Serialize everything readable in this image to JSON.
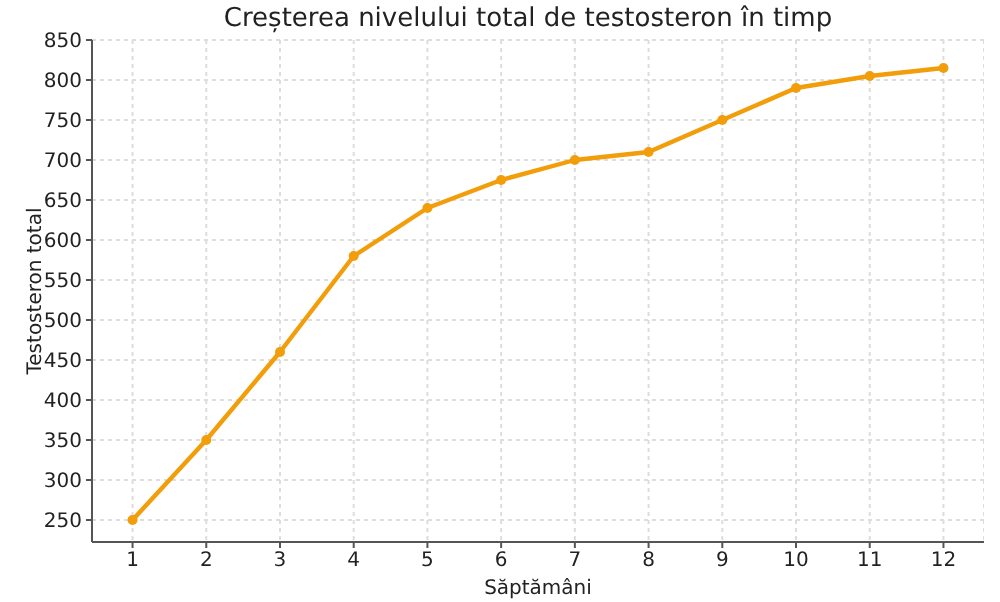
{
  "chart_data": {
    "type": "line",
    "title": "Creșterea nivelului total de testosteron în timp",
    "xlabel": "Săptămâni",
    "ylabel": "Testosteron total",
    "x": [
      1,
      2,
      3,
      4,
      5,
      6,
      7,
      8,
      9,
      10,
      11,
      12
    ],
    "series": [
      {
        "color": "#f29d0a",
        "values": [
          250,
          350,
          460,
          580,
          640,
          675,
          700,
          710,
          750,
          790,
          805,
          815
        ]
      }
    ],
    "xlim": [
      0.45,
      12.55
    ],
    "xticks": [
      1,
      2,
      3,
      4,
      5,
      6,
      7,
      8,
      9,
      10,
      11,
      12
    ],
    "ylim": [
      222.5,
      850
    ],
    "yticks": [
      250,
      300,
      350,
      400,
      450,
      500,
      550,
      600,
      650,
      700,
      750,
      800,
      850
    ],
    "grid": true,
    "marker": "circle",
    "line_style": "solid"
  }
}
